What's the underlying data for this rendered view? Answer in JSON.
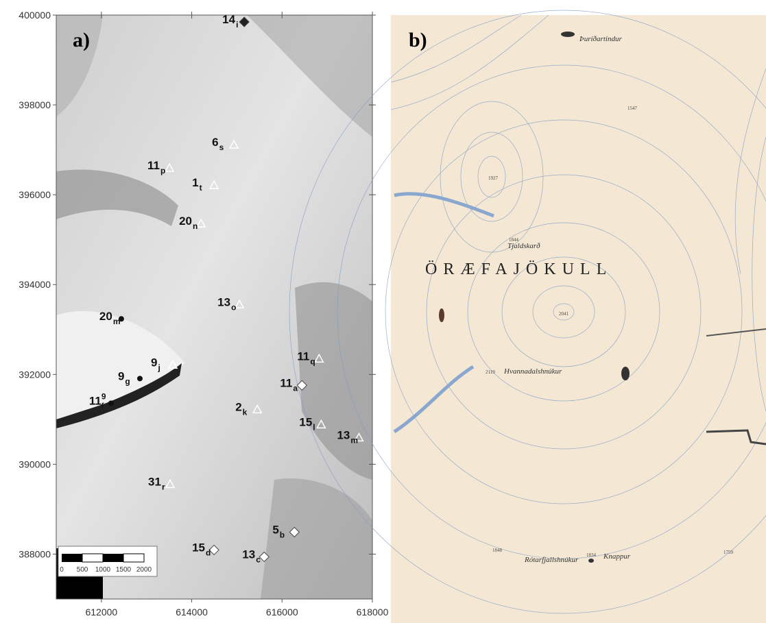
{
  "panel_a": {
    "label": "a)",
    "xlim": [
      611000,
      618000
    ],
    "ylim": [
      387000,
      400000
    ],
    "xticks": [
      612000,
      614000,
      616000,
      618000
    ],
    "yticks": [
      388000,
      390000,
      392000,
      394000,
      396000,
      398000,
      400000
    ],
    "points": [
      {
        "label": "14",
        "sub": "i",
        "x": 615163,
        "y": 399847,
        "marker": "diamond-dark"
      },
      {
        "label": "6",
        "sub": "s",
        "x": 614935,
        "y": 397115,
        "marker": "triangle"
      },
      {
        "label": "11",
        "sub": "p",
        "x": 613506,
        "y": 396595,
        "marker": "triangle"
      },
      {
        "label": "1",
        "sub": "t",
        "x": 614494,
        "y": 396214,
        "marker": "triangle"
      },
      {
        "label": "20",
        "sub": "n",
        "x": 614205,
        "y": 395359,
        "marker": "triangle"
      },
      {
        "label": "13",
        "sub": "o",
        "x": 615057,
        "y": 393557,
        "marker": "triangle"
      },
      {
        "label": "20",
        "sub": "m",
        "x": 612441,
        "y": 393237,
        "marker": "dot"
      },
      {
        "label": "9",
        "sub": "j",
        "x": 613582,
        "y": 392214,
        "marker": "triangle"
      },
      {
        "label": "9",
        "sub": "g",
        "x": 612852,
        "y": 391908,
        "marker": "dot"
      },
      {
        "label": "11",
        "sub": "f",
        "sup": "9",
        "x": 612213,
        "y": 391359,
        "marker": "dot"
      },
      {
        "label": "11",
        "sub": "q",
        "x": 616821,
        "y": 392351,
        "marker": "triangle"
      },
      {
        "label": "11",
        "sub": "a",
        "x": 616441,
        "y": 391756,
        "marker": "diamond"
      },
      {
        "label": "2",
        "sub": "k",
        "x": 615452,
        "y": 391221,
        "marker": "triangle"
      },
      {
        "label": "15",
        "sub": "l",
        "x": 616867,
        "y": 390885,
        "marker": "triangle"
      },
      {
        "label": "13",
        "sub": "m",
        "x": 617703,
        "y": 390595,
        "marker": "triangle"
      },
      {
        "label": "31",
        "sub": "r",
        "x": 613521,
        "y": 389557,
        "marker": "triangle"
      },
      {
        "label": "5",
        "sub": "b",
        "x": 616274,
        "y": 388489,
        "marker": "diamond"
      },
      {
        "label": "15",
        "sub": "d",
        "x": 614494,
        "y": 388092,
        "marker": "diamond"
      },
      {
        "label": "13",
        "sub": "c",
        "x": 615605,
        "y": 387939,
        "marker": "diamond"
      }
    ],
    "scale_bar": [
      0,
      500,
      1000,
      1500,
      2000
    ]
  },
  "panel_b": {
    "label": "b)",
    "title": "ÖRÆFAJÖKULL",
    "places": [
      "Þuríðartindur",
      "Tjaldskarð",
      "Hvannadalshnúkur",
      "Knappur",
      "Rótarfjallshnúkur"
    ],
    "heights": [
      "1927",
      "2041",
      "2119",
      "1848",
      "1834",
      "1759",
      "1844",
      "1547"
    ]
  }
}
